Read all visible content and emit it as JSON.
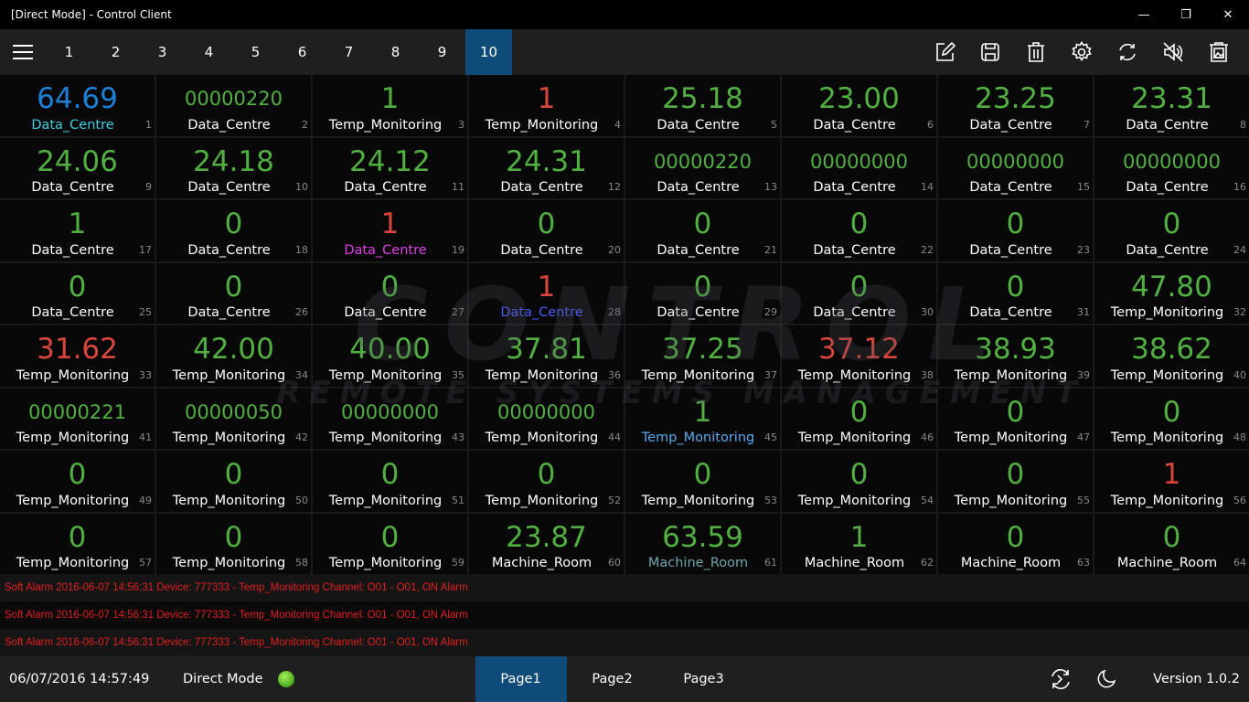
{
  "window": {
    "title": "[Direct Mode] - Control Client"
  },
  "toolbar": {
    "tabs": [
      "1",
      "2",
      "3",
      "4",
      "5",
      "6",
      "7",
      "8",
      "9",
      "10"
    ],
    "active_tab": "10",
    "tools": [
      "edit-icon",
      "save-icon",
      "delete-icon",
      "settings-icon",
      "refresh-icon",
      "mute-icon",
      "clear-image-icon"
    ]
  },
  "colors": {
    "g": "#52b043",
    "r": "#d9463e",
    "b": "#1d7fd6",
    "w": "#ffffff",
    "cy": "#3fd0e0",
    "mg": "#e040e8",
    "bl": "#4a5cff",
    "lb": "#5aa8f0",
    "tl": "#6ea6ae"
  },
  "watermark": {
    "line1": "CONTROL",
    "line2": "REMOTE SYSTEMS MANAGEMENT"
  },
  "cells": [
    {
      "v": "64.69",
      "c": "b",
      "l": "Data_Centre",
      "lc": "cy"
    },
    {
      "v": "00000220",
      "c": "g",
      "l": "Data_Centre"
    },
    {
      "v": "1",
      "c": "g",
      "l": "Temp_Monitoring"
    },
    {
      "v": "1",
      "c": "r",
      "l": "Temp_Monitoring"
    },
    {
      "v": "25.18",
      "c": "g",
      "l": "Data_Centre"
    },
    {
      "v": "23.00",
      "c": "g",
      "l": "Data_Centre"
    },
    {
      "v": "23.25",
      "c": "g",
      "l": "Data_Centre"
    },
    {
      "v": "23.31",
      "c": "g",
      "l": "Data_Centre"
    },
    {
      "v": "24.06",
      "c": "g",
      "l": "Data_Centre"
    },
    {
      "v": "24.18",
      "c": "g",
      "l": "Data_Centre"
    },
    {
      "v": "24.12",
      "c": "g",
      "l": "Data_Centre"
    },
    {
      "v": "24.31",
      "c": "g",
      "l": "Data_Centre"
    },
    {
      "v": "00000220",
      "c": "g",
      "l": "Data_Centre"
    },
    {
      "v": "00000000",
      "c": "g",
      "l": "Data_Centre"
    },
    {
      "v": "00000000",
      "c": "g",
      "l": "Data_Centre"
    },
    {
      "v": "00000000",
      "c": "g",
      "l": "Data_Centre"
    },
    {
      "v": "1",
      "c": "g",
      "l": "Data_Centre"
    },
    {
      "v": "0",
      "c": "g",
      "l": "Data_Centre"
    },
    {
      "v": "1",
      "c": "r",
      "l": "Data_Centre",
      "lc": "mg"
    },
    {
      "v": "0",
      "c": "g",
      "l": "Data_Centre"
    },
    {
      "v": "0",
      "c": "g",
      "l": "Data_Centre"
    },
    {
      "v": "0",
      "c": "g",
      "l": "Data_Centre"
    },
    {
      "v": "0",
      "c": "g",
      "l": "Data_Centre"
    },
    {
      "v": "0",
      "c": "g",
      "l": "Data_Centre"
    },
    {
      "v": "0",
      "c": "g",
      "l": "Data_Centre"
    },
    {
      "v": "0",
      "c": "g",
      "l": "Data_Centre"
    },
    {
      "v": "0",
      "c": "g",
      "l": "Data_Centre"
    },
    {
      "v": "1",
      "c": "r",
      "l": "Data_Centre",
      "lc": "bl"
    },
    {
      "v": "0",
      "c": "g",
      "l": "Data_Centre"
    },
    {
      "v": "0",
      "c": "g",
      "l": "Data_Centre"
    },
    {
      "v": "0",
      "c": "g",
      "l": "Data_Centre"
    },
    {
      "v": "47.80",
      "c": "g",
      "l": "Temp_Monitoring"
    },
    {
      "v": "31.62",
      "c": "r",
      "l": "Temp_Monitoring"
    },
    {
      "v": "42.00",
      "c": "g",
      "l": "Temp_Monitoring"
    },
    {
      "v": "40.00",
      "c": "g",
      "l": "Temp_Monitoring"
    },
    {
      "v": "37.81",
      "c": "g",
      "l": "Temp_Monitoring"
    },
    {
      "v": "37.25",
      "c": "g",
      "l": "Temp_Monitoring"
    },
    {
      "v": "37.12",
      "c": "r",
      "l": "Temp_Monitoring"
    },
    {
      "v": "38.93",
      "c": "g",
      "l": "Temp_Monitoring"
    },
    {
      "v": "38.62",
      "c": "g",
      "l": "Temp_Monitoring"
    },
    {
      "v": "00000221",
      "c": "g",
      "l": "Temp_Monitoring"
    },
    {
      "v": "00000050",
      "c": "g",
      "l": "Temp_Monitoring"
    },
    {
      "v": "00000000",
      "c": "g",
      "l": "Temp_Monitoring"
    },
    {
      "v": "00000000",
      "c": "g",
      "l": "Temp_Monitoring"
    },
    {
      "v": "1",
      "c": "g",
      "l": "Temp_Monitoring",
      "lc": "lb"
    },
    {
      "v": "0",
      "c": "g",
      "l": "Temp_Monitoring"
    },
    {
      "v": "0",
      "c": "g",
      "l": "Temp_Monitoring"
    },
    {
      "v": "0",
      "c": "g",
      "l": "Temp_Monitoring"
    },
    {
      "v": "0",
      "c": "g",
      "l": "Temp_Monitoring"
    },
    {
      "v": "0",
      "c": "g",
      "l": "Temp_Monitoring"
    },
    {
      "v": "0",
      "c": "g",
      "l": "Temp_Monitoring"
    },
    {
      "v": "0",
      "c": "g",
      "l": "Temp_Monitoring"
    },
    {
      "v": "0",
      "c": "g",
      "l": "Temp_Monitoring"
    },
    {
      "v": "0",
      "c": "g",
      "l": "Temp_Monitoring"
    },
    {
      "v": "0",
      "c": "g",
      "l": "Temp_Monitoring"
    },
    {
      "v": "1",
      "c": "r",
      "l": "Temp_Monitoring"
    },
    {
      "v": "0",
      "c": "g",
      "l": "Temp_Monitoring"
    },
    {
      "v": "0",
      "c": "g",
      "l": "Temp_Monitoring"
    },
    {
      "v": "0",
      "c": "g",
      "l": "Temp_Monitoring"
    },
    {
      "v": "23.87",
      "c": "g",
      "l": "Machine_Room"
    },
    {
      "v": "63.59",
      "c": "g",
      "l": "Machine_Room",
      "lc": "tl"
    },
    {
      "v": "1",
      "c": "g",
      "l": "Machine_Room"
    },
    {
      "v": "0",
      "c": "g",
      "l": "Machine_Room"
    },
    {
      "v": "0",
      "c": "g",
      "l": "Machine_Room"
    }
  ],
  "alarms": [
    "Soft Alarm 2016-06-07 14:56:31 Device: 777333 - Temp_Monitoring Channel: O01 - O01, ON Alarm",
    "Soft Alarm 2016-06-07 14:56:31 Device: 777333 - Temp_Monitoring Channel: O01 - O01, ON Alarm",
    "Soft Alarm 2016-06-07 14:56:31 Device: 777333 - Temp_Monitoring Channel: O01 - O01, ON Alarm"
  ],
  "footer": {
    "datetime": "06/07/2016 14:57:49",
    "mode": "Direct Mode",
    "pages": [
      "Page1",
      "Page2",
      "Page3"
    ],
    "active_page": "Page1",
    "version": "Version 1.0.2"
  }
}
